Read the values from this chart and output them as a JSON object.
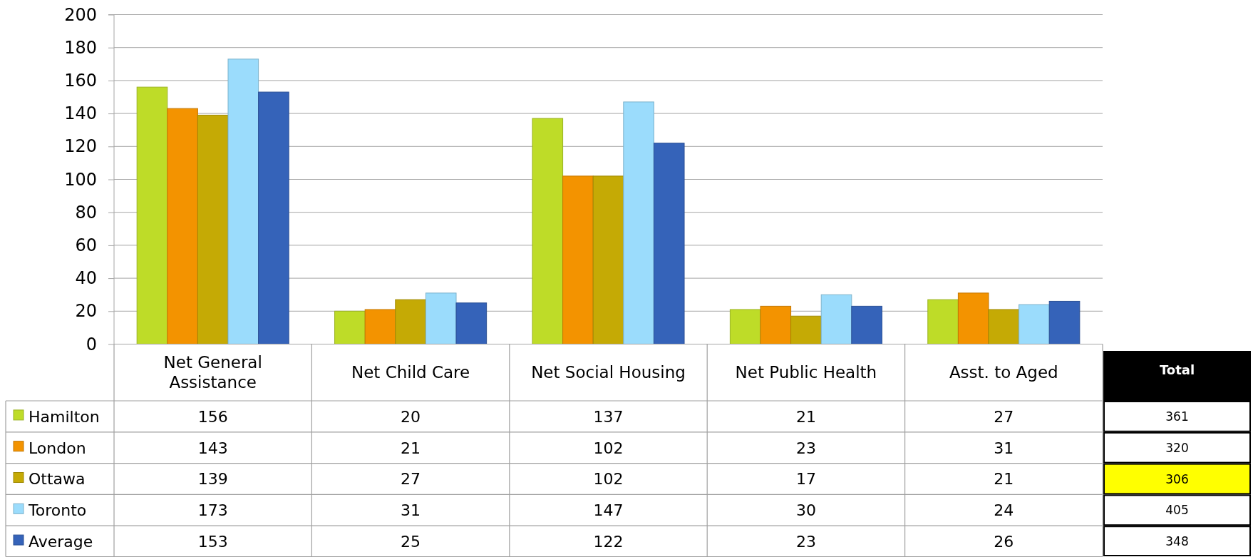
{
  "chart_data": {
    "type": "bar",
    "categories": [
      "Net General Assistance",
      "Net Child Care",
      "Net Social Housing",
      "Net Public Health",
      "Asst. to Aged"
    ],
    "series": [
      {
        "name": "Hamilton",
        "color": "#bedc28",
        "values": [
          156,
          20,
          137,
          21,
          27
        ]
      },
      {
        "name": "London",
        "color": "#f39300",
        "values": [
          143,
          21,
          102,
          23,
          31
        ]
      },
      {
        "name": "Ottawa",
        "color": "#c5aa05",
        "values": [
          139,
          27,
          102,
          17,
          21
        ]
      },
      {
        "name": "Toronto",
        "color": "#9bdcfc",
        "values": [
          173,
          31,
          147,
          30,
          24
        ]
      },
      {
        "name": "Average",
        "color": "#3563b9",
        "values": [
          153,
          25,
          122,
          23,
          26
        ]
      }
    ],
    "ylim": [
      0,
      200
    ],
    "yticks": [
      0,
      20,
      40,
      60,
      80,
      100,
      120,
      140,
      160,
      180,
      200
    ],
    "grid": "y",
    "legend": "bottom",
    "data_labels": true,
    "annotations": [
      "Total",
      "361",
      "320",
      "306",
      "405",
      "348"
    ]
  }
}
